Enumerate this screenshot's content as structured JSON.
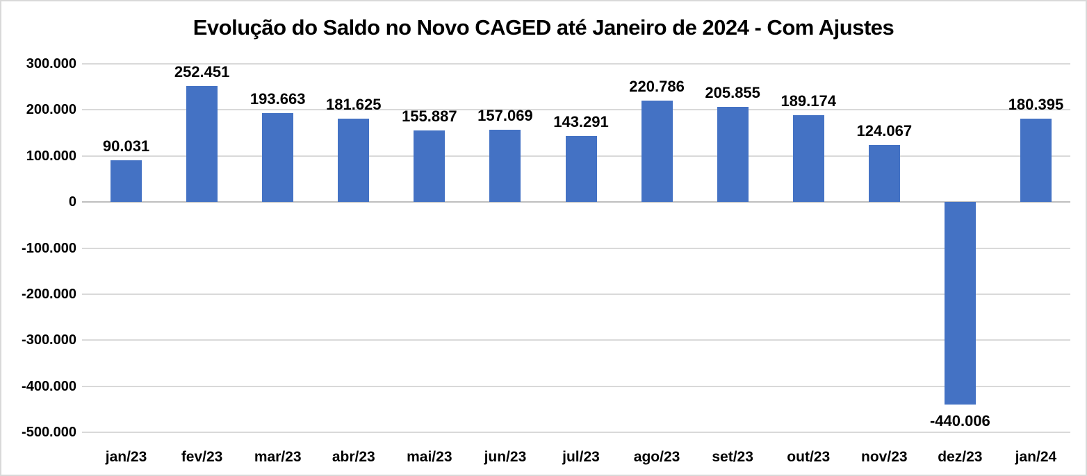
{
  "chart_data": {
    "type": "bar",
    "title": "Evolução do Saldo no Novo CAGED até Janeiro de 2024 - Com Ajustes",
    "categories": [
      "jan/23",
      "fev/23",
      "mar/23",
      "abr/23",
      "mai/23",
      "jun/23",
      "jul/23",
      "ago/23",
      "set/23",
      "out/23",
      "nov/23",
      "dez/23",
      "jan/24"
    ],
    "values": [
      90031,
      252451,
      193663,
      181625,
      155887,
      157069,
      143291,
      220786,
      205855,
      189174,
      124067,
      -440006,
      180395
    ],
    "value_labels": [
      "90.031",
      "252.451",
      "193.663",
      "181.625",
      "155.887",
      "157.069",
      "143.291",
      "220.786",
      "205.855",
      "189.174",
      "124.067",
      "-440.006",
      "180.395"
    ],
    "xlabel": "",
    "ylabel": "",
    "ylim": [
      -500000,
      300000
    ],
    "y_ticks": [
      {
        "value": 300000,
        "label": "300.000"
      },
      {
        "value": 200000,
        "label": "200.000"
      },
      {
        "value": 100000,
        "label": "100.000"
      },
      {
        "value": 0,
        "label": "0"
      },
      {
        "value": -100000,
        "label": "-100.000"
      },
      {
        "value": -200000,
        "label": "-200.000"
      },
      {
        "value": -300000,
        "label": "-300.000"
      },
      {
        "value": -400000,
        "label": "-400.000"
      },
      {
        "value": -500000,
        "label": "-500.000"
      }
    ],
    "grid": true,
    "legend_position": "none",
    "bar_color": "#4472C4",
    "gridline_color": "#D9D9D9",
    "zero_axis_color": "#BFBFBF",
    "text_color": "#000000",
    "background_color": "#FFFFFF"
  }
}
